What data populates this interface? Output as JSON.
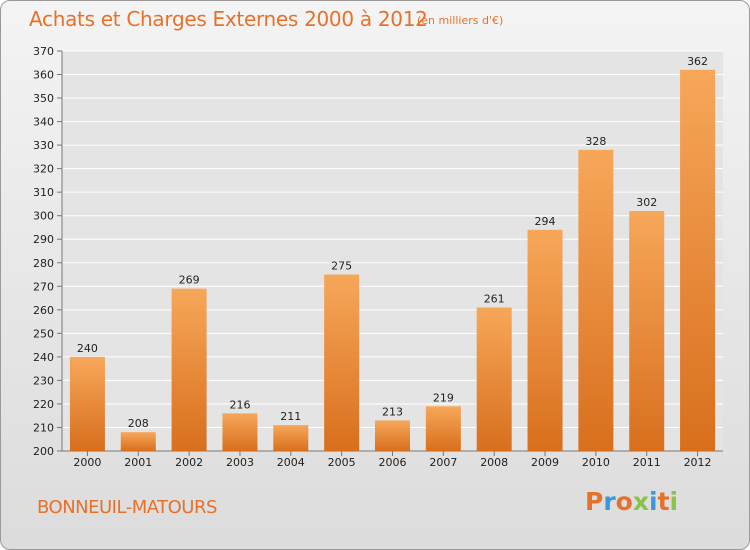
{
  "page": {
    "title": "Achats et Charges Externes 2000 à 2012",
    "subtitle": "(en milliers d'€)",
    "place": "BONNEUIL-MATOURS",
    "logo": "Proxiti"
  },
  "colors": {
    "accent": "#e8712a",
    "bar_top": "#f7a75a",
    "bar_bottom": "#d86f1d",
    "grid": "#ffffff",
    "logo_letters": [
      "#e8712a",
      "#3a9ad9",
      "#e8712a",
      "#8bc34a",
      "#3a9ad9",
      "#e8712a",
      "#8bc34a"
    ]
  },
  "chart_data": {
    "type": "bar",
    "title": "Achats et Charges Externes 2000 à 2012",
    "subtitle": "(en milliers d'€)",
    "categories": [
      "2000",
      "2001",
      "2002",
      "2003",
      "2004",
      "2005",
      "2006",
      "2007",
      "2008",
      "2009",
      "2010",
      "2011",
      "2012"
    ],
    "values": [
      240,
      208,
      269,
      216,
      211,
      275,
      213,
      219,
      261,
      294,
      328,
      302,
      362
    ],
    "ylim": [
      200,
      370
    ],
    "yticks": [
      200,
      210,
      220,
      230,
      240,
      250,
      260,
      270,
      280,
      290,
      300,
      310,
      320,
      330,
      340,
      350,
      360,
      370
    ],
    "grid": true,
    "legend": "none"
  }
}
